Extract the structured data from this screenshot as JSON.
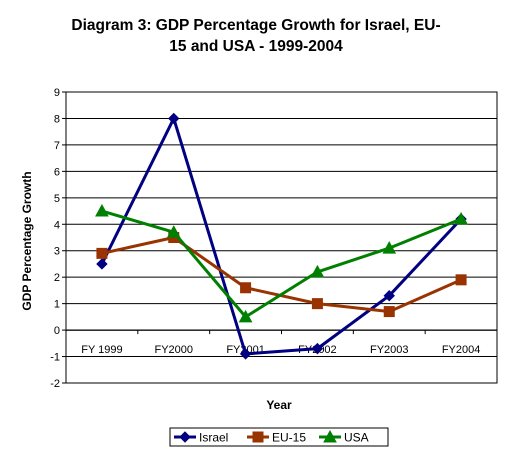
{
  "chart_data": {
    "type": "line",
    "title_line1": "Diagram 3: GDP Percentage Growth for Israel, EU-",
    "title_line2": "15 and USA - 1999-2004",
    "xlabel": "Year",
    "ylabel": "GDP Percentage Growth",
    "categories": [
      "FY 1999",
      "FY2000",
      "FY2001",
      "FY2002",
      "FY2003",
      "FY2004"
    ],
    "ylim": [
      -2,
      9
    ],
    "yticks": [
      "-2",
      "-1",
      "0",
      "1",
      "2",
      "3",
      "4",
      "5",
      "6",
      "7",
      "8",
      "9"
    ],
    "grid": true,
    "legend_position": "bottom",
    "series": [
      {
        "name": "Israel",
        "values": [
          2.5,
          8.0,
          -0.9,
          -0.7,
          1.3,
          4.2
        ],
        "color": "#000080",
        "marker": "diamond"
      },
      {
        "name": "EU-15",
        "values": [
          2.9,
          3.5,
          1.6,
          1.0,
          0.7,
          1.9
        ],
        "color": "#993300",
        "marker": "square"
      },
      {
        "name": "USA",
        "values": [
          4.5,
          3.7,
          0.5,
          2.2,
          3.1,
          4.2
        ],
        "color": "#008000",
        "marker": "triangle"
      }
    ]
  }
}
